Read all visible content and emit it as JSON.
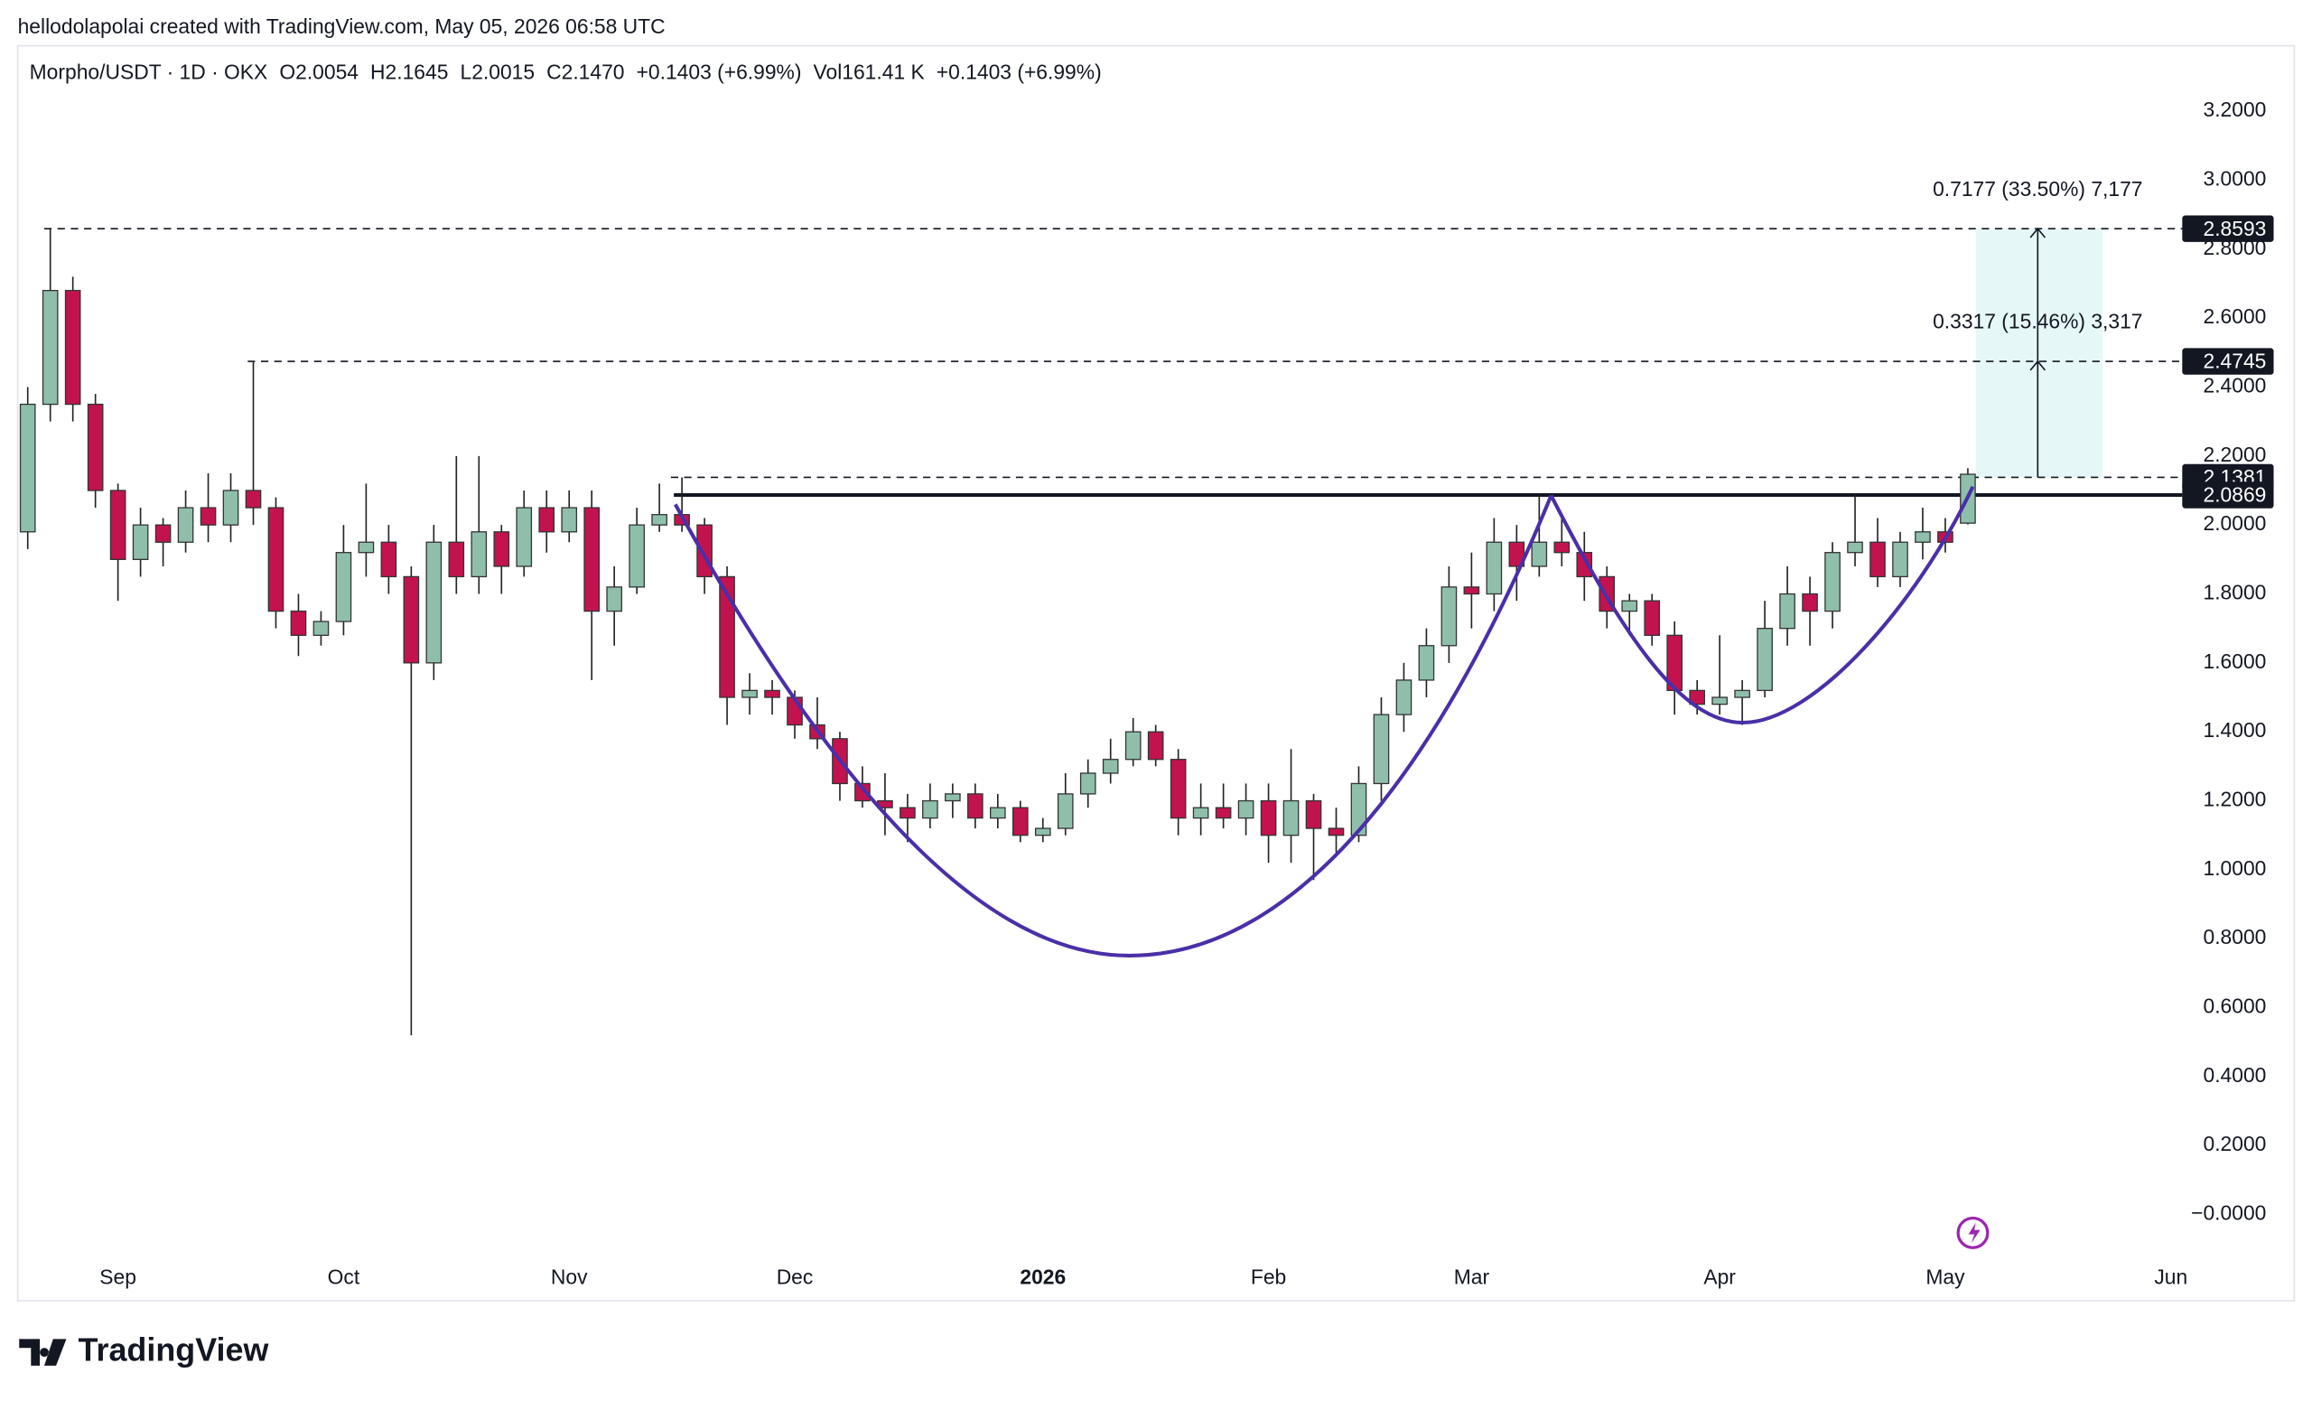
{
  "credit": "hellodolapolai created with TradingView.com, May 05, 2026 06:58 UTC",
  "chart_data": {
    "type": "candlestick",
    "info": [
      "Morpho/USDT · 1D · OKX",
      "O2.0054",
      "H2.1645",
      "L2.0015",
      "C2.1470",
      "+0.1403 (+6.99%)",
      "Vol161.41 K",
      "+0.1403 (+6.99%)"
    ],
    "categories": [
      null,
      null,
      null,
      null,
      "Sep",
      null,
      null,
      null,
      null,
      null,
      null,
      null,
      null,
      null,
      "Oct",
      null,
      null,
      null,
      null,
      null,
      null,
      null,
      null,
      null,
      "Nov",
      null,
      null,
      null,
      null,
      null,
      null,
      null,
      null,
      null,
      "Dec",
      null,
      null,
      null,
      null,
      null,
      null,
      null,
      null,
      null,
      null,
      "2026",
      null,
      null,
      null,
      null,
      null,
      null,
      null,
      null,
      null,
      "Feb",
      null,
      null,
      null,
      null,
      null,
      null,
      null,
      null,
      "Mar",
      null,
      null,
      null,
      null,
      null,
      null,
      null,
      null,
      null,
      null,
      "Apr",
      null,
      null,
      null,
      null,
      null,
      null,
      null,
      null,
      null,
      "May",
      null,
      null,
      null,
      null,
      null,
      null,
      null,
      null,
      null,
      "Jun",
      null
    ],
    "open": [
      1.98,
      2.35,
      2.68,
      2.35,
      2.1,
      1.9,
      2.0,
      1.95,
      2.05,
      2.0,
      2.1,
      2.05,
      1.75,
      1.68,
      1.72,
      1.92,
      1.95,
      1.85,
      1.6,
      1.95,
      1.85,
      1.98,
      1.88,
      2.05,
      1.98,
      2.05,
      1.75,
      1.82,
      2.0,
      2.03,
      2.0,
      1.85,
      1.5,
      1.52,
      1.5,
      1.42,
      1.38,
      1.25,
      1.2,
      1.18,
      1.15,
      1.2,
      1.22,
      1.15,
      1.18,
      1.1,
      1.12,
      1.22,
      1.28,
      1.32,
      1.4,
      1.32,
      1.15,
      1.18,
      1.15,
      1.2,
      1.1,
      1.2,
      1.12,
      1.1,
      1.25,
      1.45,
      1.55,
      1.65,
      1.82,
      1.8,
      1.95,
      1.88,
      1.95,
      1.92,
      1.85,
      1.75,
      1.78,
      1.68,
      1.52,
      1.48,
      1.5,
      1.52,
      1.7,
      1.8,
      1.75,
      1.92,
      1.95,
      1.85,
      1.95,
      1.98,
      2.0054,
      null,
      null,
      null,
      null,
      null,
      null,
      null,
      null,
      null,
      null
    ],
    "high": [
      2.4,
      2.8593,
      2.72,
      2.38,
      2.12,
      2.05,
      2.02,
      2.1,
      2.15,
      2.15,
      2.4745,
      2.08,
      1.8,
      1.75,
      2.0,
      2.12,
      2.0,
      1.88,
      2.0,
      2.2,
      2.2,
      2.0,
      2.1,
      2.1,
      2.1,
      2.1,
      1.88,
      2.05,
      2.12,
      2.1381,
      2.02,
      1.88,
      1.57,
      1.55,
      1.52,
      1.5,
      1.4,
      1.3,
      1.28,
      1.22,
      1.25,
      1.25,
      1.25,
      1.22,
      1.2,
      1.15,
      1.28,
      1.32,
      1.38,
      1.44,
      1.42,
      1.35,
      1.25,
      1.25,
      1.25,
      1.25,
      1.35,
      1.22,
      1.18,
      1.3,
      1.5,
      1.6,
      1.7,
      1.88,
      1.92,
      2.02,
      2.0,
      2.0869,
      2.02,
      1.98,
      1.88,
      1.8,
      1.8,
      1.72,
      1.55,
      1.68,
      1.55,
      1.78,
      1.88,
      1.85,
      1.95,
      2.09,
      2.02,
      1.98,
      2.05,
      2.02,
      2.1645,
      null,
      null,
      null,
      null,
      null,
      null,
      null,
      null,
      null,
      null
    ],
    "low": [
      1.93,
      2.3,
      2.3,
      2.05,
      1.78,
      1.85,
      1.88,
      1.92,
      1.95,
      1.95,
      2.0,
      1.7,
      1.62,
      1.65,
      1.68,
      1.85,
      1.8,
      0.52,
      1.55,
      1.8,
      1.8,
      1.8,
      1.85,
      1.92,
      1.95,
      1.55,
      1.65,
      1.8,
      1.98,
      1.98,
      1.8,
      1.42,
      1.45,
      1.45,
      1.38,
      1.35,
      1.2,
      1.18,
      1.1,
      1.08,
      1.12,
      1.15,
      1.12,
      1.12,
      1.08,
      1.08,
      1.1,
      1.18,
      1.25,
      1.3,
      1.3,
      1.1,
      1.1,
      1.12,
      1.1,
      1.02,
      1.02,
      0.97,
      1.05,
      1.08,
      1.2,
      1.4,
      1.5,
      1.6,
      1.7,
      1.75,
      1.78,
      1.85,
      1.88,
      1.78,
      1.7,
      1.68,
      1.65,
      1.45,
      1.45,
      1.45,
      1.42,
      1.5,
      1.65,
      1.65,
      1.7,
      1.88,
      1.82,
      1.82,
      1.9,
      1.92,
      2.0015,
      null,
      null,
      null,
      null,
      null,
      null,
      null,
      null,
      null,
      null
    ],
    "close": [
      2.35,
      2.68,
      2.35,
      2.1,
      1.9,
      2.0,
      1.95,
      2.05,
      2.0,
      2.1,
      2.05,
      1.75,
      1.68,
      1.72,
      1.92,
      1.95,
      1.85,
      1.6,
      1.95,
      1.85,
      1.98,
      1.88,
      2.05,
      1.98,
      2.05,
      1.75,
      1.82,
      2.0,
      2.03,
      2.0,
      1.85,
      1.5,
      1.52,
      1.5,
      1.42,
      1.38,
      1.25,
      1.2,
      1.18,
      1.15,
      1.2,
      1.22,
      1.15,
      1.18,
      1.1,
      1.12,
      1.22,
      1.28,
      1.32,
      1.4,
      1.32,
      1.15,
      1.18,
      1.15,
      1.2,
      1.1,
      1.2,
      1.12,
      1.1,
      1.25,
      1.45,
      1.55,
      1.65,
      1.82,
      1.8,
      1.95,
      1.88,
      1.95,
      1.92,
      1.85,
      1.75,
      1.78,
      1.68,
      1.52,
      1.48,
      1.5,
      1.52,
      1.7,
      1.8,
      1.75,
      1.92,
      1.95,
      1.85,
      1.95,
      1.98,
      1.95,
      2.147,
      null,
      null,
      null,
      null,
      null,
      null,
      null,
      null,
      null,
      null
    ],
    "up_color": "#8fbfaa",
    "down_color": "#c2134f",
    "ylim": [
      -0.25,
      3.39
    ],
    "yticks": [
      {
        "value": 0,
        "label": "−0.0000"
      },
      {
        "value": 0.2,
        "label": "0.2000"
      },
      {
        "value": 0.4,
        "label": "0.4000"
      },
      {
        "value": 0.6,
        "label": "0.6000"
      },
      {
        "value": 0.8,
        "label": "0.8000"
      },
      {
        "value": 1,
        "label": "1.0000"
      },
      {
        "value": 1.2,
        "label": "1.2000"
      },
      {
        "value": 1.4,
        "label": "1.4000"
      },
      {
        "value": 1.6,
        "label": "1.6000"
      },
      {
        "value": 1.8,
        "label": "1.8000"
      },
      {
        "value": 2,
        "label": "2.0000"
      },
      {
        "value": 2.2,
        "label": "2.2000"
      },
      {
        "value": 2.4,
        "label": "2.4000"
      },
      {
        "value": 2.6,
        "label": "2.6000"
      },
      {
        "value": 2.8,
        "label": "2.8000"
      },
      {
        "value": 3,
        "label": "3.0000"
      },
      {
        "value": 3.2,
        "label": "3.2000"
      }
    ],
    "grid": false,
    "levels": [
      2.8593,
      2.4745,
      2.1381,
      2.0869
    ],
    "annotations": [
      "0.7177 (33.50%) 7,177",
      "0.3317 (15.46%) 3,317"
    ],
    "curve_color": "#4a2fa8"
  },
  "watermark": "TradingView"
}
